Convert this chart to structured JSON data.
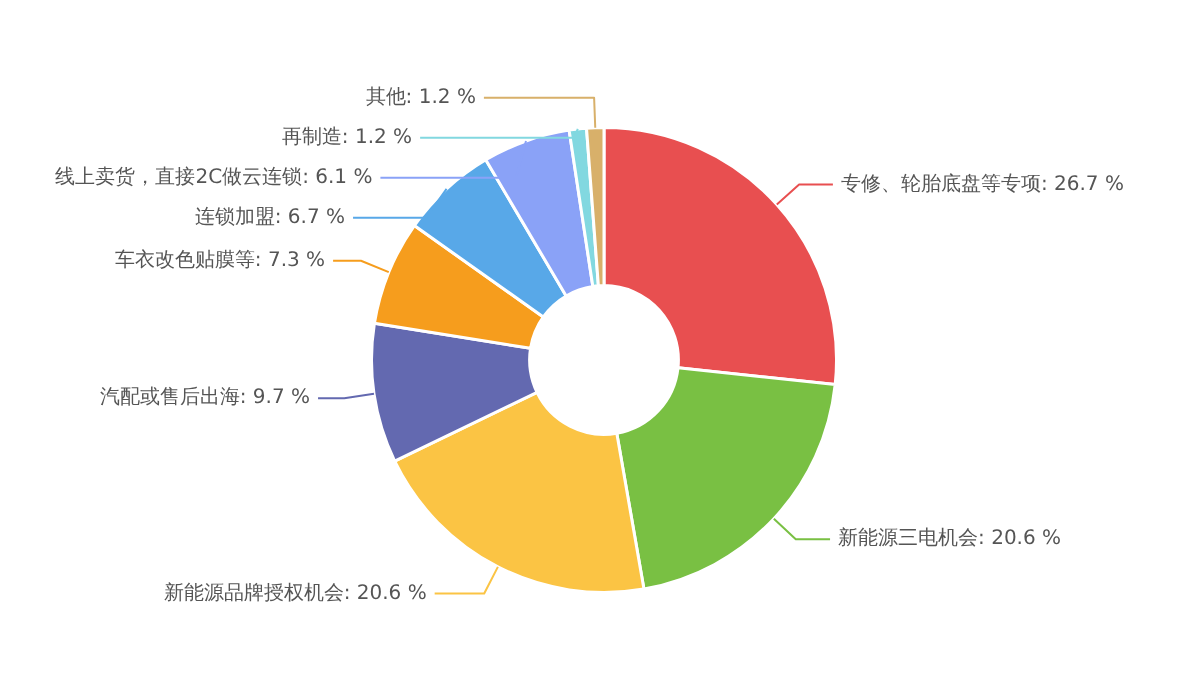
{
  "chart_data": {
    "type": "donut",
    "categories": [
      "专修、轮胎底盘等专项",
      "新能源三电机会",
      "新能源品牌授权机会",
      "汽配或售后出海",
      "车衣改色贴膜等",
      "连锁加盟",
      "线上卖货，直接2C做云连锁",
      "再制造",
      "其他"
    ],
    "values": [
      26.7,
      20.6,
      20.6,
      9.7,
      7.3,
      6.7,
      6.1,
      1.2,
      1.2
    ],
    "value_labels": [
      "26.7 %",
      "20.6 %",
      "20.6 %",
      "9.7 %",
      "7.3 %",
      "6.7 %",
      "6.1 %",
      "1.2 %",
      "1.2 %"
    ],
    "colors": [
      "#e84f50",
      "#79c043",
      "#fbc444",
      "#6369b0",
      "#f69d1d",
      "#58a8e8",
      "#8aa2f7",
      "#82d8e0",
      "#d8b06a"
    ],
    "legend": false
  }
}
